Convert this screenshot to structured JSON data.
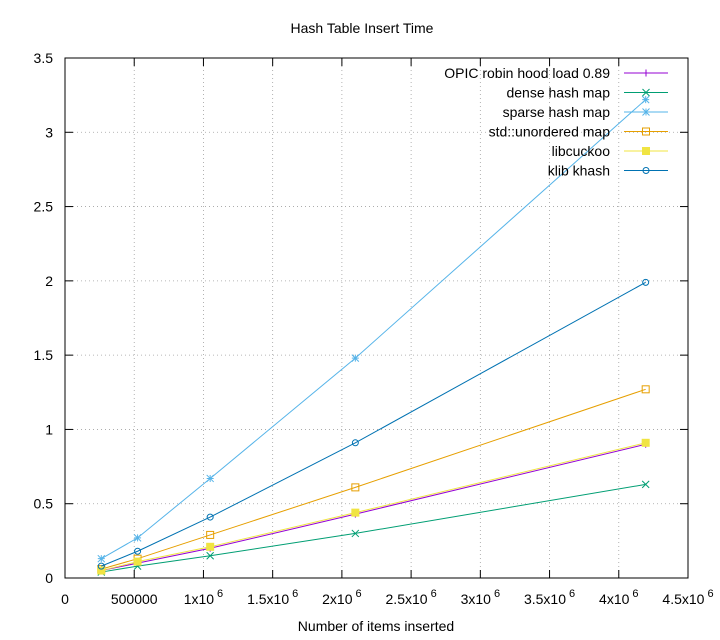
{
  "chart_data": {
    "type": "line",
    "title": "Hash Table Insert Time",
    "xlabel": "Number of items inserted",
    "ylabel": "",
    "xlim": [
      0,
      4500000
    ],
    "ylim": [
      0,
      3.5
    ],
    "grid": true,
    "legend_position": "top-right",
    "x_ticks": [
      {
        "value": 0,
        "base": "0",
        "exp": ""
      },
      {
        "value": 500000,
        "base": "500000",
        "exp": ""
      },
      {
        "value": 1000000,
        "base": "1x10",
        "exp": "6"
      },
      {
        "value": 1500000,
        "base": "1.5x10",
        "exp": "6"
      },
      {
        "value": 2000000,
        "base": "2x10",
        "exp": "6"
      },
      {
        "value": 2500000,
        "base": "2.5x10",
        "exp": "6"
      },
      {
        "value": 3000000,
        "base": "3x10",
        "exp": "6"
      },
      {
        "value": 3500000,
        "base": "3.5x10",
        "exp": "6"
      },
      {
        "value": 4000000,
        "base": "4x10",
        "exp": "6"
      },
      {
        "value": 4500000,
        "base": "4.5x10",
        "exp": "6"
      }
    ],
    "y_ticks": [
      {
        "value": 0,
        "label": "0"
      },
      {
        "value": 0.5,
        "label": "0.5"
      },
      {
        "value": 1,
        "label": "1"
      },
      {
        "value": 1.5,
        "label": "1.5"
      },
      {
        "value": 2,
        "label": "2"
      },
      {
        "value": 2.5,
        "label": "2.5"
      },
      {
        "value": 3,
        "label": "3"
      },
      {
        "value": 3.5,
        "label": "3.5"
      }
    ],
    "x": [
      262144,
      524288,
      1048576,
      2097152,
      4194304
    ],
    "series": [
      {
        "name": "OPIC robin hood load 0.89",
        "color": "#9400d3",
        "marker": "plus",
        "values": [
          0.05,
          0.1,
          0.2,
          0.43,
          0.9
        ]
      },
      {
        "name": "dense hash map",
        "color": "#009e73",
        "marker": "cross",
        "values": [
          0.04,
          0.08,
          0.15,
          0.3,
          0.63
        ]
      },
      {
        "name": "sparse hash map",
        "color": "#56b4e9",
        "marker": "star",
        "values": [
          0.13,
          0.27,
          0.67,
          1.48,
          3.22
        ]
      },
      {
        "name": "std::unordered map",
        "color": "#e69f00",
        "marker": "open-square",
        "values": [
          0.06,
          0.13,
          0.29,
          0.61,
          1.27
        ]
      },
      {
        "name": "libcuckoo",
        "color": "#f0e442",
        "marker": "filled-square",
        "values": [
          0.05,
          0.11,
          0.21,
          0.44,
          0.91
        ]
      },
      {
        "name": "klib khash",
        "color": "#0072b2",
        "marker": "open-circle",
        "values": [
          0.08,
          0.18,
          0.41,
          0.91,
          1.99
        ]
      }
    ]
  }
}
